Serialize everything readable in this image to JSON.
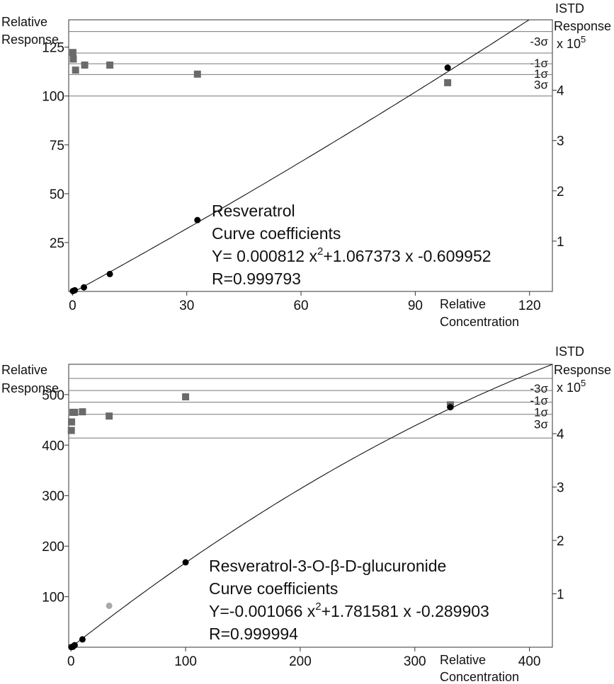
{
  "chart_data": [
    {
      "type": "scatter",
      "left_axis": {
        "label_line1": "Relative",
        "label_line2": "Response",
        "ylim": [
          0,
          139
        ],
        "ticks": [
          25,
          50,
          75,
          100,
          125
        ]
      },
      "right_axis": {
        "label_line1": "ISTD",
        "label_line2": "Response",
        "multiplier": "x 10",
        "exponent": "5",
        "ylim": [
          0,
          5.4
        ],
        "ticks": [
          1,
          2,
          3,
          4
        ]
      },
      "x_axis": {
        "label_line1": "Relative",
        "label_line2": "Concentration",
        "xlim": [
          -1,
          126
        ],
        "ticks": [
          0,
          30,
          60,
          90,
          120
        ]
      },
      "sigma_lines": [
        {
          "label": "-3σ",
          "value": 133
        },
        {
          "label": "-1σ",
          "value": 122
        },
        {
          "label": "1σ",
          "value": 116.5
        },
        {
          "label": "3σ",
          "value": 111
        },
        {
          "label": "",
          "value": 100
        }
      ],
      "calibration_points": {
        "x": [
          0.1,
          0.6,
          3,
          9.8,
          32.8,
          98.5
        ],
        "y": [
          0.2,
          0.6,
          2.1,
          8.9,
          36.5,
          114.5
        ]
      },
      "istd_points": {
        "x": [
          0.1,
          0.2,
          0.8,
          3.2,
          9.8,
          32.8,
          98.5
        ],
        "y": [
          4.75,
          4.62,
          4.4,
          4.5,
          4.5,
          4.32,
          4.15
        ]
      },
      "curve": {
        "a": 0.000812,
        "b": 1.067373,
        "c": -0.609952,
        "x_from": 0.57,
        "x_to": 126
      },
      "annotation": {
        "name": "Resveratrol",
        "subtitle": "Curve coefficients",
        "equation_a": "Y= 0.000812 x",
        "equation_sup": "2",
        "equation_b": "+1.067373 x -0.609952",
        "r": "R=0.999793"
      }
    },
    {
      "type": "scatter",
      "left_axis": {
        "label_line1": "Relative",
        "label_line2": "Response",
        "ylim": [
          0,
          560
        ],
        "ticks": [
          100,
          200,
          300,
          400,
          500
        ]
      },
      "right_axis": {
        "label_line1": "ISTD",
        "label_line2": "Response",
        "multiplier": "x 10",
        "exponent": "5",
        "ylim": [
          0,
          5.3
        ],
        "ticks": [
          1,
          2,
          3,
          4
        ]
      },
      "x_axis": {
        "label_line1": "Relative",
        "label_line2": "Concentration",
        "xlim": [
          -2,
          420
        ],
        "ticks": [
          0,
          100,
          200,
          300,
          400
        ]
      },
      "sigma_lines": [
        {
          "label": "-3σ",
          "value": 532
        },
        {
          "label": "-1σ",
          "value": 508
        },
        {
          "label": "1σ",
          "value": 485
        },
        {
          "label": "3σ",
          "value": 461
        },
        {
          "label": "",
          "value": 414
        }
      ],
      "calibration_points": {
        "x": [
          0.3,
          1.7,
          3.2,
          10,
          100,
          331
        ],
        "y": [
          0.3,
          1,
          4,
          15.5,
          168,
          475
        ]
      },
      "outlier_points": {
        "x": [
          33.3
        ],
        "y": [
          82
        ]
      },
      "istd_points": {
        "x": [
          0.3,
          0.5,
          1.7,
          3.2,
          10,
          33.3,
          100,
          331
        ],
        "y": [
          4.06,
          4.22,
          4.4,
          4.4,
          4.41,
          4.33,
          4.69,
          4.54
        ]
      },
      "curve": {
        "a": -0.001066,
        "b": 1.781581,
        "c": -0.289903,
        "x_from": 0.17,
        "x_to": 420
      },
      "annotation": {
        "name": "Resveratrol-3-O-β-D-glucuronide",
        "subtitle": "Curve coefficients",
        "equation_a": "Y=-0.001066 x",
        "equation_sup": "2",
        "equation_b": "+1.781581 x -0.289903",
        "r": "R=0.999994"
      }
    }
  ]
}
